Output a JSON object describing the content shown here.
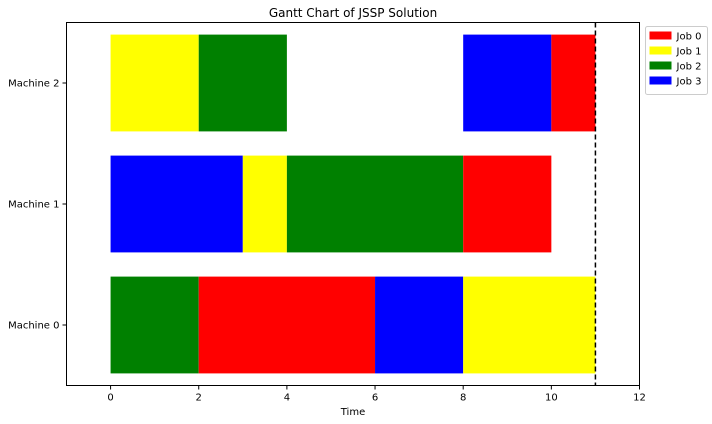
{
  "chart_data": {
    "type": "gantt",
    "title": "Gantt Chart of JSSP Solution",
    "xlabel": "Time",
    "ylabel": "",
    "xlim": [
      -1,
      12
    ],
    "xticks": [
      0,
      2,
      4,
      6,
      8,
      10,
      12
    ],
    "grid": false,
    "legend_position": "upper-right-outside",
    "machines": [
      "Machine 0",
      "Machine 1",
      "Machine 2"
    ],
    "jobs": [
      {
        "name": "Job 0",
        "color": "#ff0000"
      },
      {
        "name": "Job 1",
        "color": "#ffff00"
      },
      {
        "name": "Job 2",
        "color": "#008000"
      },
      {
        "name": "Job 3",
        "color": "#0000ff"
      }
    ],
    "tasks": [
      {
        "machine": 0,
        "job": 2,
        "start": 0,
        "end": 2
      },
      {
        "machine": 0,
        "job": 0,
        "start": 2,
        "end": 6
      },
      {
        "machine": 0,
        "job": 3,
        "start": 6,
        "end": 8
      },
      {
        "machine": 0,
        "job": 1,
        "start": 8,
        "end": 11
      },
      {
        "machine": 1,
        "job": 3,
        "start": 0,
        "end": 3
      },
      {
        "machine": 1,
        "job": 1,
        "start": 3,
        "end": 4
      },
      {
        "machine": 1,
        "job": 2,
        "start": 4,
        "end": 8
      },
      {
        "machine": 1,
        "job": 0,
        "start": 8,
        "end": 10
      },
      {
        "machine": 2,
        "job": 1,
        "start": 0,
        "end": 2
      },
      {
        "machine": 2,
        "job": 2,
        "start": 2,
        "end": 4
      },
      {
        "machine": 2,
        "job": 3,
        "start": 8,
        "end": 10
      },
      {
        "machine": 2,
        "job": 0,
        "start": 10,
        "end": 11
      }
    ],
    "makespan_line": {
      "x": 11,
      "style": "dashed",
      "color": "#000000"
    }
  }
}
